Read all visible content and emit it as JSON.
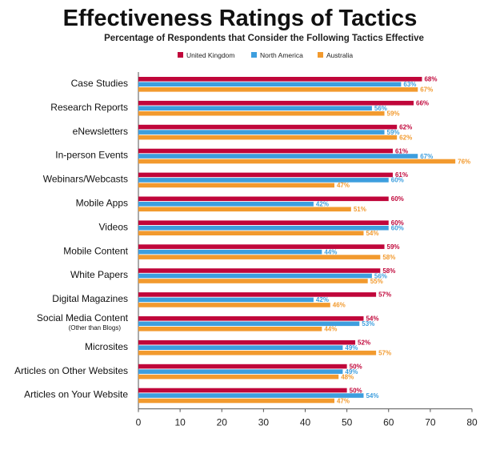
{
  "chart_data": {
    "type": "bar",
    "orientation": "horizontal",
    "title": "Effectiveness Ratings of Tactics",
    "subtitle": "Percentage of Respondents that Consider the Following Tactics Effective",
    "categories": [
      "Case Studies",
      "Research Reports",
      "eNewsletters",
      "In-person Events",
      "Webinars/Webcasts",
      "Mobile Apps",
      "Videos",
      "Mobile Content",
      "White Papers",
      "Digital Magazines",
      "Social Media Content",
      "Microsites",
      "Articles on Other Websites",
      "Articles on Your Website"
    ],
    "category_notes": {
      "Social Media Content": "(Other than Blogs)"
    },
    "series": [
      {
        "name": "United Kingdom",
        "color": "#c0063a",
        "values": [
          68,
          66,
          62,
          61,
          61,
          60,
          60,
          59,
          58,
          57,
          54,
          52,
          50,
          50
        ]
      },
      {
        "name": "North America",
        "color": "#3d9ede",
        "values": [
          63,
          56,
          59,
          67,
          60,
          42,
          60,
          44,
          56,
          42,
          53,
          49,
          49,
          54
        ]
      },
      {
        "name": "Australia",
        "color": "#f29a2e",
        "values": [
          67,
          59,
          62,
          76,
          47,
          51,
          54,
          58,
          55,
          46,
          44,
          57,
          48,
          47
        ]
      }
    ],
    "value_suffix": "%",
    "xlim": [
      0,
      80
    ],
    "xticks": [
      0,
      10,
      20,
      30,
      40,
      50,
      60,
      70,
      80
    ],
    "grid": false,
    "legend_position": "top"
  }
}
